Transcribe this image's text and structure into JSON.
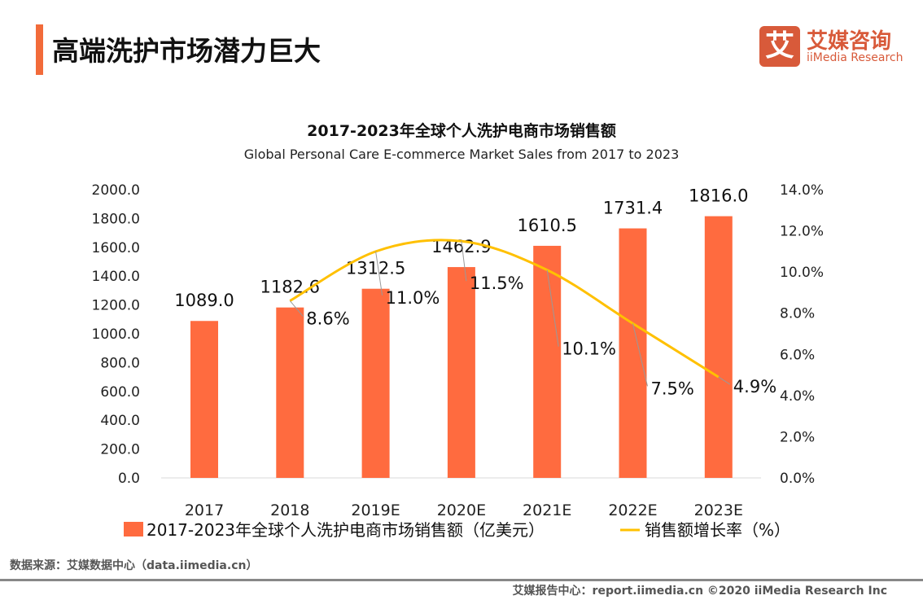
{
  "header": {
    "title": "高端洗护市场潜力巨大",
    "logo_cn": "艾媒咨询",
    "logo_en": "iiMedia Research",
    "logo_mark": "艾"
  },
  "chart_data": {
    "type": "bar+line",
    "title": "2017-2023年全球个人洗护电商市场销售额",
    "subtitle": "Global Personal Care E-commerce Market Sales from 2017 to 2023",
    "categories": [
      "2017",
      "2018",
      "2019E",
      "2020E",
      "2021E",
      "2022E",
      "2023E"
    ],
    "series": [
      {
        "name": "2017-2023年全球个人洗护电商市场销售额（亿美元）",
        "type": "bar",
        "axis": "left",
        "color": "#FF6B3F",
        "values": [
          1089.0,
          1182.6,
          1312.5,
          1462.9,
          1610.5,
          1731.4,
          1816.0
        ],
        "labels": [
          "1089.0",
          "1182.6",
          "1312.5",
          "1462.9",
          "1610.5",
          "1731.4",
          "1816.0"
        ]
      },
      {
        "name": "销售额增长率（%）",
        "type": "line",
        "axis": "right",
        "color": "#FFC000",
        "values": [
          null,
          8.6,
          11.0,
          11.5,
          10.1,
          7.5,
          4.9
        ],
        "labels": [
          "",
          "8.6%",
          "11.0%",
          "11.5%",
          "10.1%",
          "7.5%",
          "4.9%"
        ]
      }
    ],
    "left_axis": {
      "ylim": [
        0,
        2000
      ],
      "ticks": [
        "0.0",
        "200.0",
        "400.0",
        "600.0",
        "800.0",
        "1000.0",
        "1200.0",
        "1400.0",
        "1600.0",
        "1800.0",
        "2000.0"
      ]
    },
    "right_axis": {
      "ylim": [
        0,
        14
      ],
      "ticks": [
        "0.0%",
        "2.0%",
        "4.0%",
        "6.0%",
        "8.0%",
        "10.0%",
        "12.0%",
        "14.0%"
      ]
    },
    "grid": false,
    "legend": "bottom"
  },
  "footer": {
    "source": "数据来源：艾媒数据中心（data.iimedia.cn）",
    "credit": "艾媒报告中心：report.iimedia.cn   ©2020  iiMedia Research  Inc"
  }
}
